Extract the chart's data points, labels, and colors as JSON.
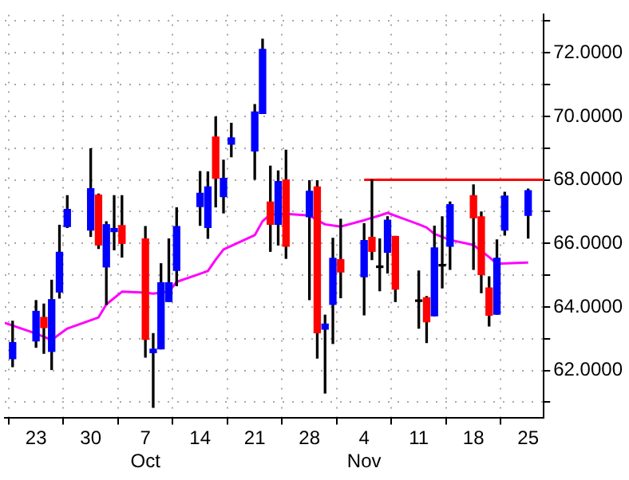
{
  "chart_data": {
    "type": "candlestick",
    "x": [
      "--09-20",
      "--09-23",
      "--09-24",
      "--09-25",
      "--09-26",
      "--09-27",
      "--09-30",
      "--10-01",
      "--10-02",
      "--10-03",
      "--10-04",
      "--10-07",
      "--10-08",
      "--10-09",
      "--10-10",
      "--10-11",
      "--10-14",
      "--10-15",
      "--10-16",
      "--10-17",
      "--10-18",
      "--10-21",
      "--10-22",
      "--10-23",
      "--10-24",
      "--10-25",
      "--10-28",
      "--10-29",
      "--10-30",
      "--10-31",
      "--11-01",
      "--11-04",
      "--11-05",
      "--11-06",
      "--11-07",
      "--11-08",
      "--11-11",
      "--11-12",
      "--11-13",
      "--11-14",
      "--11-15",
      "--11-18",
      "--11-19",
      "--11-20",
      "--11-21",
      "--11-22",
      "--11-25"
    ],
    "ohlc": [
      [
        62.37,
        63.55,
        62.12,
        62.88
      ],
      [
        62.93,
        64.2,
        62.73,
        63.86
      ],
      [
        63.67,
        64.09,
        62.54,
        63.35
      ],
      [
        62.6,
        64.84,
        62.03,
        64.23
      ],
      [
        64.47,
        66.57,
        64.28,
        65.72
      ],
      [
        66.53,
        67.5,
        66.5,
        67.07
      ],
      [
        66.42,
        68.98,
        66.22,
        67.72
      ],
      [
        67.52,
        67.55,
        65.84,
        65.95
      ],
      [
        65.26,
        66.68,
        64.08,
        66.59
      ],
      [
        66.37,
        67.5,
        65.8,
        66.47
      ],
      [
        66.56,
        67.5,
        65.57,
        66.0
      ],
      [
        66.14,
        66.53,
        62.42,
        62.98
      ],
      [
        62.56,
        63.16,
        60.84,
        62.67
      ],
      [
        62.68,
        65.36,
        62.68,
        64.76
      ],
      [
        64.17,
        66.14,
        64.17,
        64.76
      ],
      [
        65.15,
        67.12,
        64.67,
        66.53
      ],
      [
        67.16,
        68.26,
        66.57,
        67.58
      ],
      [
        66.5,
        68.25,
        66.16,
        67.78
      ],
      [
        69.35,
        69.98,
        67.15,
        68.05
      ],
      [
        67.47,
        68.62,
        66.96,
        68.05
      ],
      [
        69.12,
        69.78,
        68.73,
        69.32
      ],
      [
        68.91,
        70.37,
        68.02,
        70.14
      ],
      [
        70.09,
        72.43,
        70.09,
        72.11
      ],
      [
        67.3,
        68.43,
        65.75,
        66.6
      ],
      [
        66.6,
        68.28,
        65.95,
        67.95
      ],
      [
        68.0,
        68.93,
        65.53,
        65.91
      ],
      [
        66.84,
        67.97,
        64.23,
        67.64
      ],
      [
        67.78,
        67.97,
        62.39,
        63.19
      ],
      [
        63.3,
        63.74,
        61.29,
        63.46
      ],
      [
        64.08,
        66.16,
        62.85,
        65.53
      ],
      [
        65.49,
        66.76,
        64.29,
        65.1
      ],
      [
        64.95,
        66.62,
        63.75,
        66.09
      ],
      [
        66.19,
        68.0,
        65.49,
        65.75
      ],
      [
        65.24,
        66.14,
        64.51,
        65.24
      ],
      [
        65.72,
        66.84,
        65.07,
        66.73
      ],
      [
        66.22,
        66.22,
        64.17,
        64.56
      ],
      [
        64.17,
        65.13,
        63.33,
        64.17
      ],
      [
        64.29,
        64.33,
        62.88,
        63.53
      ],
      [
        63.72,
        66.54,
        63.72,
        65.86
      ],
      [
        65.29,
        66.84,
        64.6,
        65.29
      ],
      [
        65.91,
        67.3,
        65.18,
        67.22
      ],
      [
        67.5,
        67.84,
        65.18,
        66.81
      ],
      [
        66.84,
        66.99,
        64.45,
        65.02
      ],
      [
        64.6,
        64.95,
        63.4,
        63.74
      ],
      [
        63.77,
        66.11,
        63.77,
        65.53
      ],
      [
        66.42,
        67.61,
        66.26,
        67.49
      ],
      [
        66.88,
        67.71,
        66.17,
        67.66
      ]
    ],
    "colors": [
      "#0000ff",
      "#0000ff",
      "#ff0000",
      "#0000ff",
      "#0000ff",
      "#0000ff",
      "#0000ff",
      "#ff0000",
      "#0000ff",
      "#0000ff",
      "#ff0000",
      "#ff0000",
      "#0000ff",
      "#0000ff",
      "#0000ff",
      "#0000ff",
      "#0000ff",
      "#0000ff",
      "#ff0000",
      "#0000ff",
      "#0000ff",
      "#0000ff",
      "#0000ff",
      "#ff0000",
      "#0000ff",
      "#ff0000",
      "#0000ff",
      "#ff0000",
      "#0000ff",
      "#0000ff",
      "#ff0000",
      "#0000ff",
      "#ff0000",
      "#000000",
      "#0000ff",
      "#ff0000",
      "#000000",
      "#ff0000",
      "#0000ff",
      "#000000",
      "#0000ff",
      "#ff0000",
      "#ff0000",
      "#ff0000",
      "#0000ff",
      "#0000ff",
      "#0000ff"
    ],
    "series": [
      {
        "type": "line",
        "color": "#ff00ff",
        "x": [
          "--09-19",
          "--09-23",
          "--09-25",
          "--09-27",
          "--10-01",
          "--10-02",
          "--10-04",
          "--10-07",
          "--10-08",
          "--10-10",
          "--10-11",
          "--10-15",
          "--10-16",
          "--10-17",
          "--10-21",
          "--10-22",
          "--10-23",
          "--10-25",
          "--10-28",
          "--10-29",
          "--10-30",
          "--11-01",
          "--11-04",
          "--11-06",
          "--11-07",
          "--11-11",
          "--11-12",
          "--11-13",
          "--11-15",
          "--11-18",
          "--11-20",
          "--11-21",
          "--11-25"
        ],
        "values": [
          63.5,
          63.16,
          62.96,
          63.32,
          63.67,
          64.08,
          64.48,
          64.45,
          64.42,
          64.48,
          64.79,
          65.13,
          65.49,
          65.81,
          66.26,
          66.7,
          66.91,
          66.93,
          66.88,
          66.73,
          66.6,
          66.53,
          66.73,
          66.88,
          66.96,
          66.6,
          66.5,
          66.3,
          66.11,
          65.95,
          65.57,
          65.36,
          65.4
        ]
      },
      {
        "type": "line",
        "color": "#ff0000",
        "x": [
          "--11-04",
          "--11-27"
        ],
        "values": [
          68,
          68
        ]
      }
    ],
    "xlim": [
      "--09-19",
      "--11-27"
    ],
    "xticks": [
      {
        "value": "--09-23",
        "label": "23"
      },
      {
        "value": "--09-30",
        "label": "30"
      },
      {
        "value": "--10-07",
        "label": "7\nOct"
      },
      {
        "value": "--10-14",
        "label": "14"
      },
      {
        "value": "--10-21",
        "label": "21"
      },
      {
        "value": "--10-28",
        "label": "28"
      },
      {
        "value": "--11-04",
        "label": "4\nNov"
      },
      {
        "value": "--11-11",
        "label": "11"
      },
      {
        "value": "--11-18",
        "label": "18"
      },
      {
        "value": "--11-25",
        "label": "25"
      }
    ],
    "ylim": [
      60.5,
      73.2
    ],
    "yticks": [
      {
        "value": 61,
        "label": null
      },
      {
        "value": 62,
        "label": "62.0000"
      },
      {
        "value": 63,
        "label": null
      },
      {
        "value": 64,
        "label": "64.0000"
      },
      {
        "value": 65,
        "label": null
      },
      {
        "value": 66,
        "label": "66.0000"
      },
      {
        "value": 67,
        "label": null
      },
      {
        "value": 68,
        "label": "68.0000"
      },
      {
        "value": 69,
        "label": null
      },
      {
        "value": 70,
        "label": "70.0000"
      },
      {
        "value": 71,
        "label": null
      },
      {
        "value": 72,
        "label": "72.0000"
      },
      {
        "value": 73,
        "label": null
      }
    ],
    "grid": true,
    "marker": "none",
    "legend": false
  }
}
